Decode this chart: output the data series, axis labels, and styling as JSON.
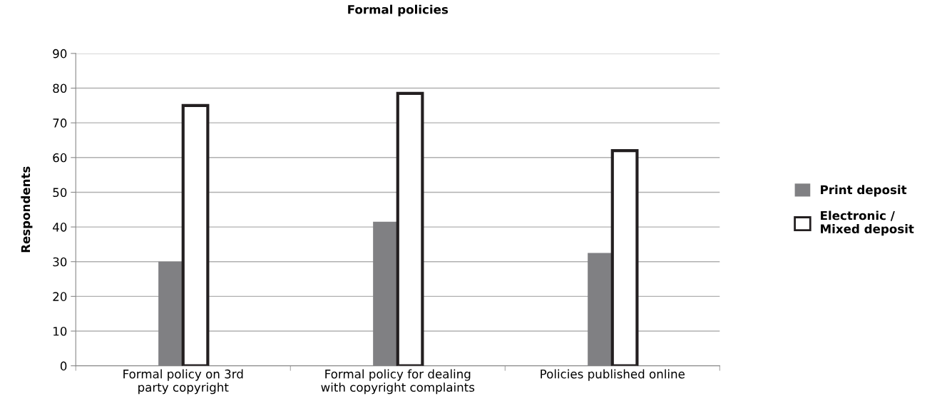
{
  "chart_data": {
    "type": "bar",
    "title": "Formal policies",
    "ylabel": "Respondents",
    "categories": [
      "Formal policy on 3rd\nparty copyright",
      "Formal policy for dealing\nwith copyright complaints",
      "Policies published online"
    ],
    "series": [
      {
        "name": "Print deposit",
        "color": "#808083",
        "values": [
          30,
          41.5,
          32.5
        ]
      },
      {
        "name": "Electronic /\nMixed deposit",
        "color": "#ffffff",
        "values": [
          75,
          78.5,
          62
        ]
      }
    ],
    "ylim": [
      0,
      90
    ],
    "yticks": [
      0,
      10,
      20,
      30,
      40,
      50,
      60,
      70,
      80,
      90
    ],
    "grid": "y",
    "legend": "right"
  }
}
